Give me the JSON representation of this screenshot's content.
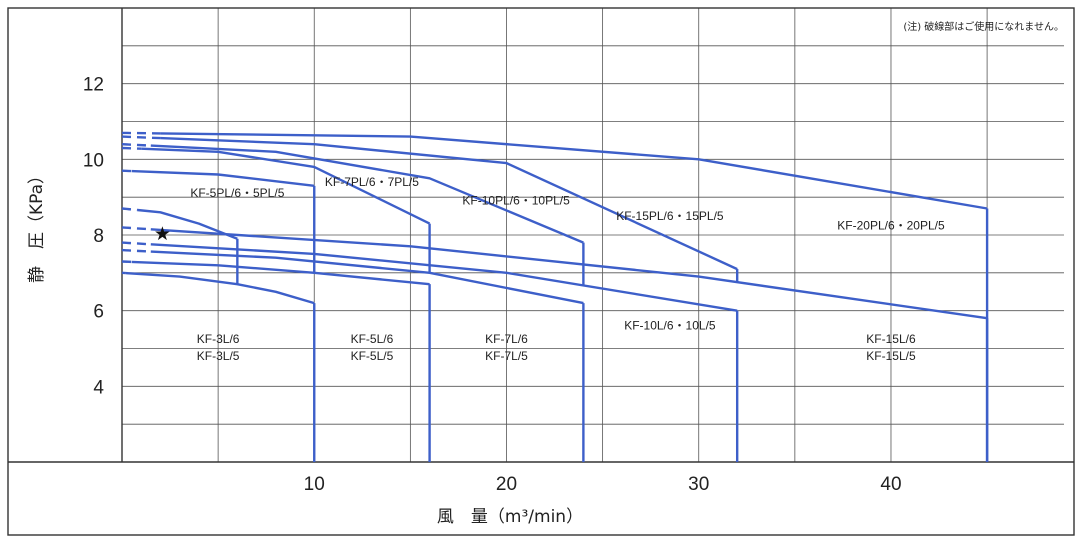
{
  "chart_data": {
    "type": "line",
    "note": "(注) 破線部はご使用になれません。",
    "xlabel": "風　量（m³/min）",
    "ylabel": "静　圧（KPa）",
    "xlim": [
      0,
      49
    ],
    "ylim": [
      2,
      14
    ],
    "x_ticks": [
      10,
      20,
      30,
      40
    ],
    "y_ticks": [
      4,
      6,
      8,
      10,
      12
    ],
    "grid": true,
    "series_color": "#3d5fc9",
    "marker": {
      "symbol": "★",
      "x": 2.1,
      "y": 8.05
    },
    "series": [
      {
        "label_lines": [
          "KF-3L/6",
          "KF-3L/5"
        ],
        "label_at": [
          5,
          5.15
        ],
        "curves": [
          {
            "dashed_to": 0.2,
            "points": [
              [
                0,
                7.0
              ],
              [
                3,
                6.9
              ],
              [
                6,
                6.7
              ],
              [
                8,
                6.5
              ],
              [
                10,
                6.2
              ]
            ]
          },
          {
            "dashed_to": 0.8,
            "points": [
              [
                0,
                8.7
              ],
              [
                2,
                8.6
              ],
              [
                4,
                8.3
              ],
              [
                6,
                7.9
              ]
            ]
          }
        ],
        "x_max": [
          10,
          6
        ]
      },
      {
        "label_lines": [
          "KF-5PL/6・5PL/5"
        ],
        "label_at": [
          6,
          9.0
        ]
      },
      {
        "label_lines": [
          "KF-5L/6",
          "KF-5L/5"
        ],
        "label_at": [
          13,
          5.15
        ],
        "curves": [
          {
            "dashed_to": 0.5,
            "points": [
              [
                0,
                7.3
              ],
              [
                5,
                7.2
              ],
              [
                10,
                7.0
              ],
              [
                16,
                6.7
              ]
            ]
          },
          {
            "dashed_to": 0.5,
            "points": [
              [
                0,
                9.7
              ],
              [
                5,
                9.6
              ],
              [
                10,
                9.3
              ]
            ]
          }
        ],
        "x_max": [
          16,
          10
        ]
      },
      {
        "label_lines": [
          "KF-7PL/6・7PL/5"
        ],
        "label_at": [
          13,
          9.3
        ]
      },
      {
        "label_lines": [
          "KF-7L/6",
          "KF-7L/5"
        ],
        "label_at": [
          20,
          5.15
        ],
        "curves": [
          {
            "dashed_to": 1.5,
            "points": [
              [
                0,
                7.6
              ],
              [
                8,
                7.4
              ],
              [
                16,
                7.0
              ],
              [
                24,
                6.2
              ]
            ]
          },
          {
            "dashed_to": 1.0,
            "points": [
              [
                0,
                10.3
              ],
              [
                5,
                10.2
              ],
              [
                10,
                9.8
              ],
              [
                16,
                8.3
              ]
            ]
          }
        ],
        "x_max": [
          24,
          16
        ]
      },
      {
        "label_lines": [
          "KF-10PL/6・10PL/5"
        ],
        "label_at": [
          20.5,
          8.8
        ]
      },
      {
        "label_lines": [
          "KF-10L/6・10L/5"
        ],
        "label_at": [
          28.5,
          5.5
        ],
        "curves": [
          {
            "dashed_to": 1.5,
            "points": [
              [
                0,
                7.8
              ],
              [
                10,
                7.5
              ],
              [
                20,
                7.0
              ],
              [
                32,
                6.0
              ]
            ]
          },
          {
            "dashed_to": 1.5,
            "points": [
              [
                0,
                10.4
              ],
              [
                8,
                10.2
              ],
              [
                16,
                9.5
              ],
              [
                24,
                7.8
              ]
            ]
          }
        ],
        "x_max": [
          32,
          24
        ]
      },
      {
        "label_lines": [
          "KF-15PL/6・15PL/5"
        ],
        "label_at": [
          28.5,
          8.4
        ]
      },
      {
        "label_lines": [
          "KF-15L/6",
          "KF-15L/5"
        ],
        "label_at": [
          40,
          5.15
        ],
        "curves": [
          {
            "dashed_to": 1.5,
            "points": [
              [
                0,
                8.2
              ],
              [
                15,
                7.7
              ],
              [
                30,
                6.9
              ],
              [
                45,
                5.8
              ]
            ]
          },
          {
            "dashed_to": 2.0,
            "points": [
              [
                0,
                10.6
              ],
              [
                10,
                10.4
              ],
              [
                20,
                9.9
              ],
              [
                32,
                7.1
              ]
            ]
          }
        ],
        "x_max": [
          45,
          32
        ]
      },
      {
        "label_lines": [
          "KF-20PL/6・20PL/5"
        ],
        "label_at": [
          40,
          8.15
        ],
        "curves": [
          {
            "dashed_to": 2.0,
            "points": [
              [
                0,
                10.7
              ],
              [
                15,
                10.6
              ],
              [
                30,
                10.0
              ],
              [
                45,
                8.7
              ]
            ]
          }
        ],
        "x_max": [
          45
        ]
      }
    ]
  }
}
